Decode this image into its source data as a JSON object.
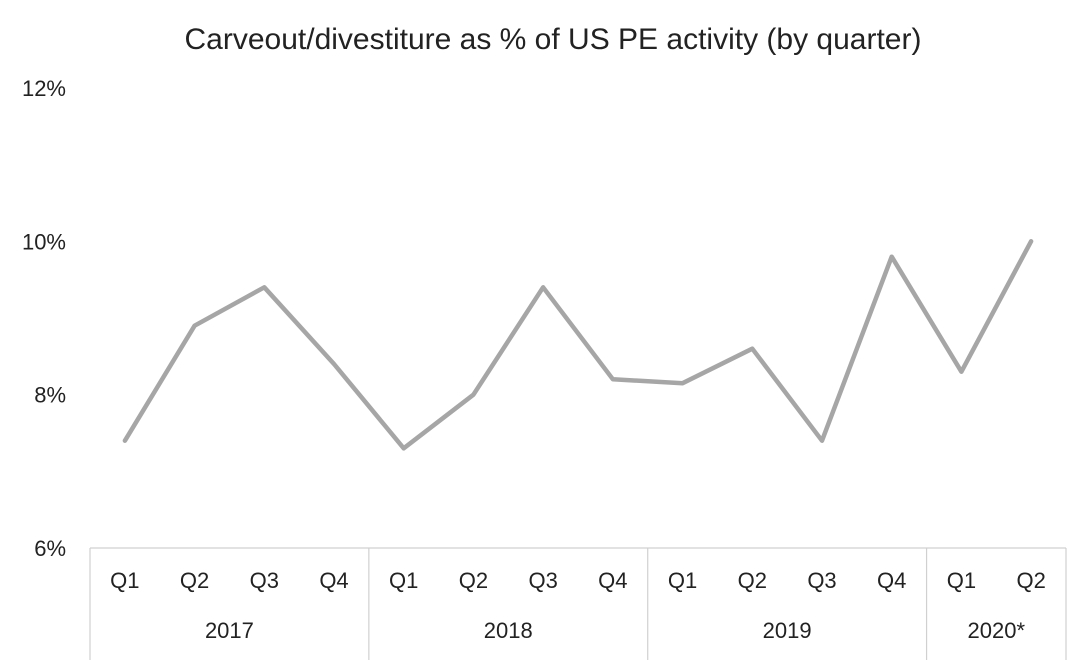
{
  "chart_data": {
    "type": "line",
    "title": "Carveout/divestiture as % of US PE activity (by quarter)",
    "xlabel": "",
    "ylabel": "",
    "ylim": [
      6,
      12
    ],
    "yticks": [
      "6%",
      "8%",
      "10%",
      "12%"
    ],
    "ytick_values": [
      6,
      8,
      10,
      12
    ],
    "grid": false,
    "categories": [
      "Q1",
      "Q2",
      "Q3",
      "Q4",
      "Q1",
      "Q2",
      "Q3",
      "Q4",
      "Q1",
      "Q2",
      "Q3",
      "Q4",
      "Q1",
      "Q2"
    ],
    "groups": [
      {
        "label": "2017",
        "count": 4
      },
      {
        "label": "2018",
        "count": 4
      },
      {
        "label": "2019",
        "count": 4
      },
      {
        "label": "2020*",
        "count": 2
      }
    ],
    "series": [
      {
        "values": [
          7.4,
          8.9,
          9.4,
          8.4,
          7.3,
          8.0,
          9.4,
          8.2,
          8.15,
          8.6,
          7.4,
          9.8,
          8.3,
          10.0
        ]
      }
    ],
    "line_color": "#a6a6a6"
  }
}
